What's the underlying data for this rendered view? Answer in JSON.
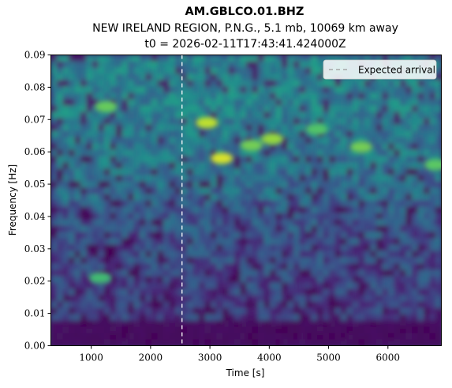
{
  "chart_data": {
    "type": "heatmap",
    "title": "AM.GBLCO.01.BHZ",
    "subtitle": "NEW IRELAND REGION, P.N.G., 5.1 mb, 10069 km away",
    "subtitle2": "t0 = 2026-02-11T17:43:41.424000Z",
    "xlabel": "Time [s]",
    "ylabel": "Frequency [Hz]",
    "xlim": [
      320,
      6900
    ],
    "ylim": [
      0.0,
      0.09
    ],
    "xticks": [
      1000,
      2000,
      3000,
      4000,
      5000,
      6000
    ],
    "yticks": [
      0.0,
      0.01,
      0.02,
      0.03,
      0.04,
      0.05,
      0.06,
      0.07,
      0.08,
      0.09
    ],
    "xtick_labels": [
      "1000",
      "2000",
      "3000",
      "4000",
      "5000",
      "6000"
    ],
    "ytick_labels": [
      "0.00",
      "0.01",
      "0.02",
      "0.03",
      "0.04",
      "0.05",
      "0.06",
      "0.07",
      "0.08",
      "0.09"
    ],
    "colormap": "viridis",
    "expected_arrival": {
      "x": 2530,
      "label": "Expected arrival",
      "color": "#ffffff",
      "style": "dashed"
    },
    "hotspots": [
      {
        "x": 2950,
        "y": 0.069,
        "intensity": 0.9
      },
      {
        "x": 3200,
        "y": 0.058,
        "intensity": 1.0
      },
      {
        "x": 4050,
        "y": 0.064,
        "intensity": 0.75
      },
      {
        "x": 3700,
        "y": 0.062,
        "intensity": 0.6
      },
      {
        "x": 1250,
        "y": 0.074,
        "intensity": 0.55
      },
      {
        "x": 5550,
        "y": 0.0615,
        "intensity": 0.6
      },
      {
        "x": 6800,
        "y": 0.056,
        "intensity": 0.5
      },
      {
        "x": 4800,
        "y": 0.067,
        "intensity": 0.45
      },
      {
        "x": 1150,
        "y": 0.021,
        "intensity": 0.35
      }
    ],
    "legend_position": "upper-right",
    "grid": false
  }
}
